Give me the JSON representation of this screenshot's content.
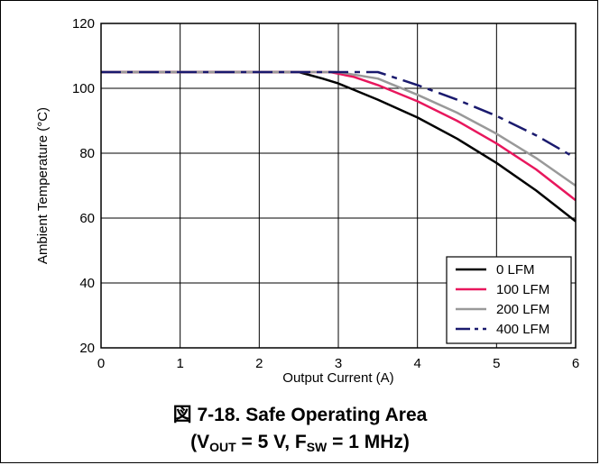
{
  "chart_data": {
    "type": "line",
    "xlabel": "Output Current (A)",
    "ylabel": "Ambient Temperature (°C)",
    "xlim": [
      0,
      6
    ],
    "ylim": [
      20,
      120
    ],
    "x_ticks": [
      "0",
      "1",
      "2",
      "3",
      "4",
      "5",
      "6"
    ],
    "y_ticks": [
      "20",
      "40",
      "60",
      "80",
      "100",
      "120"
    ],
    "grid": true,
    "legend_position": "bottom-right",
    "series": [
      {
        "name": "0 LFM",
        "color": "#000000",
        "dash": "solid",
        "points": [
          [
            0,
            105
          ],
          [
            2.5,
            105
          ],
          [
            2.8,
            103
          ],
          [
            3.0,
            101.5
          ],
          [
            3.5,
            96.5
          ],
          [
            4.0,
            91
          ],
          [
            4.5,
            84.5
          ],
          [
            5.0,
            77
          ],
          [
            5.5,
            68.5
          ],
          [
            6.0,
            59
          ]
        ]
      },
      {
        "name": "100 LFM",
        "color": "#e8175d",
        "dash": "solid",
        "points": [
          [
            0,
            105
          ],
          [
            2.9,
            105
          ],
          [
            3.2,
            103.5
          ],
          [
            3.5,
            101
          ],
          [
            4.0,
            96
          ],
          [
            4.5,
            90
          ],
          [
            5.0,
            83
          ],
          [
            5.5,
            75
          ],
          [
            6.0,
            65.5
          ]
        ]
      },
      {
        "name": "200 LFM",
        "color": "#999999",
        "dash": "solid",
        "points": [
          [
            0,
            105
          ],
          [
            3.0,
            105
          ],
          [
            3.5,
            103
          ],
          [
            4.0,
            98
          ],
          [
            4.5,
            92.5
          ],
          [
            5.0,
            86
          ],
          [
            5.5,
            78.5
          ],
          [
            6.0,
            70
          ]
        ]
      },
      {
        "name": "400 LFM",
        "color": "#1a1a6e",
        "dash": "dashdot",
        "points": [
          [
            0,
            105
          ],
          [
            3.5,
            105
          ],
          [
            4.0,
            101
          ],
          [
            4.5,
            96.5
          ],
          [
            5.0,
            91.5
          ],
          [
            5.5,
            85.5
          ],
          [
            6.0,
            78.5
          ]
        ]
      }
    ]
  },
  "caption": {
    "line1": "図 7-18. Safe Operating Area",
    "line2_prefix": "(V",
    "line2_sub1": "OUT",
    "line2_mid": " = 5 V, F",
    "line2_sub2": "SW",
    "line2_suffix": " = 1 MHz)"
  }
}
